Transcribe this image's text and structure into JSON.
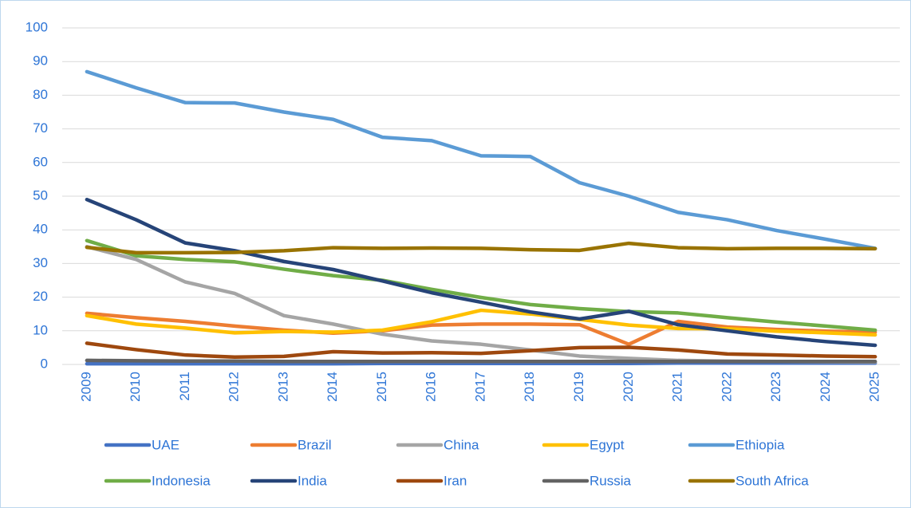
{
  "chart_data": {
    "type": "line",
    "categories": [
      "2009",
      "2010",
      "2011",
      "2012",
      "2013",
      "2014",
      "2015",
      "2016",
      "2017",
      "2018",
      "2019",
      "2020",
      "2021",
      "2022",
      "2023",
      "2024",
      "2025"
    ],
    "ylim": [
      0,
      100
    ],
    "yticks": [
      0,
      10,
      20,
      30,
      40,
      50,
      60,
      70,
      80,
      90,
      100
    ],
    "grid": true,
    "legend": "bottom",
    "series": [
      {
        "name": "UAE",
        "color": "#4472c4",
        "values": [
          0.2,
          0.2,
          0.2,
          0.2,
          0.2,
          0.2,
          0.3,
          0.3,
          0.3,
          0.3,
          0.3,
          0.3,
          0.4,
          0.4,
          0.4,
          0.4,
          0.4
        ]
      },
      {
        "name": "Brazil",
        "color": "#ed7d31",
        "values": [
          15.2,
          13.9,
          12.8,
          11.4,
          10.2,
          9.3,
          10,
          11.7,
          12,
          12,
          11.8,
          6,
          12.8,
          11.1,
          10.4,
          9.9,
          9.6
        ]
      },
      {
        "name": "China",
        "color": "#a5a5a5",
        "values": [
          35,
          31.2,
          24.5,
          21.1,
          14.5,
          12,
          9,
          7,
          6,
          4.3,
          2.5,
          1.8,
          1.2,
          1,
          0.9,
          0.8,
          0.7
        ]
      },
      {
        "name": "Egypt",
        "color": "#ffc000",
        "values": [
          14.5,
          12,
          10.8,
          9.4,
          9.8,
          9.6,
          10.2,
          12.7,
          16.1,
          15,
          13.4,
          11.7,
          10.7,
          10.6,
          9.9,
          9.4,
          8.8
        ]
      },
      {
        "name": "Ethiopia",
        "color": "#5b9bd5",
        "values": [
          87,
          82.2,
          77.8,
          77.7,
          75,
          72.8,
          67.5,
          66.5,
          62,
          61.8,
          54,
          50,
          45.2,
          43,
          39.8,
          37.2,
          34.5
        ]
      },
      {
        "name": "Indonesia",
        "color": "#70ad47",
        "values": [
          36.8,
          32.3,
          31.2,
          30.5,
          28.3,
          26.4,
          25,
          22.3,
          19.9,
          17.8,
          16.6,
          15.7,
          15.3,
          13.9,
          12.6,
          11.4,
          10.2
        ]
      },
      {
        "name": "India",
        "color": "#264478",
        "values": [
          49,
          43,
          36.1,
          33.8,
          30.6,
          28.2,
          24.8,
          21.3,
          18.5,
          15.6,
          13.5,
          15.8,
          11.8,
          10,
          8.2,
          6.8,
          5.7
        ]
      },
      {
        "name": "Iran",
        "color": "#9e480e",
        "values": [
          6.3,
          4.4,
          2.8,
          2.2,
          2.4,
          3.8,
          3.4,
          3.5,
          3.3,
          4.1,
          5,
          5.1,
          4.3,
          3.1,
          2.8,
          2.5,
          2.3
        ]
      },
      {
        "name": "Russia",
        "color": "#636363",
        "values": [
          1.2,
          1.1,
          1,
          1,
          0.9,
          0.9,
          0.9,
          0.9,
          0.9,
          0.9,
          0.9,
          0.9,
          0.9,
          0.9,
          0.9,
          0.9,
          0.9
        ]
      },
      {
        "name": "South Africa",
        "color": "#997300",
        "values": [
          34.8,
          33.2,
          33.2,
          33.3,
          33.8,
          34.7,
          34.5,
          34.6,
          34.5,
          34.1,
          33.9,
          36,
          34.7,
          34.4,
          34.5,
          34.5,
          34.4
        ]
      }
    ]
  }
}
